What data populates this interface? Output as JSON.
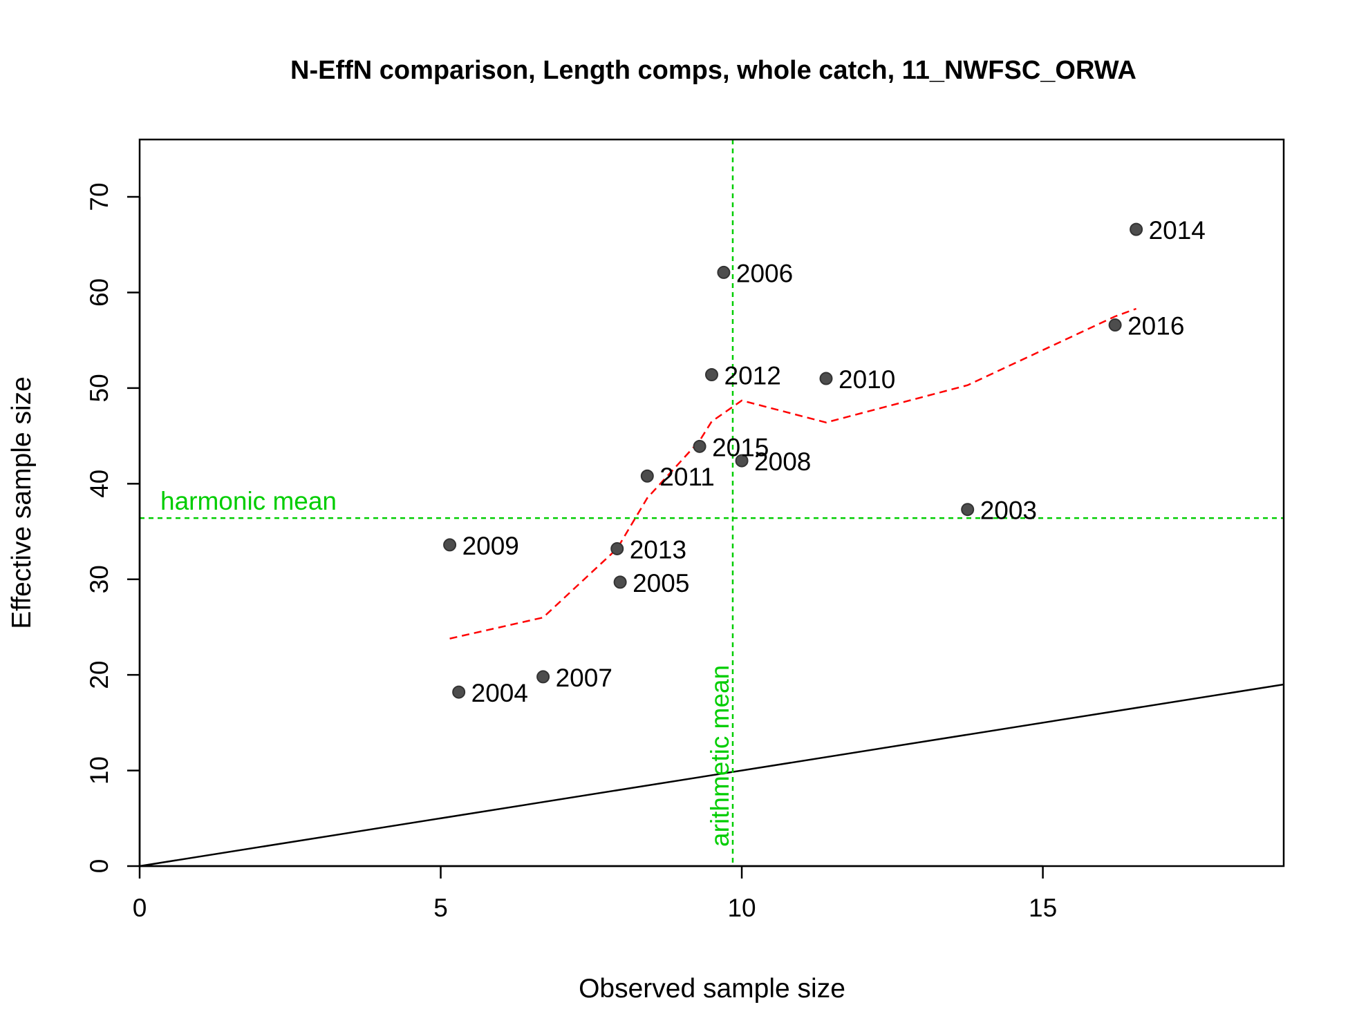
{
  "chart_data": {
    "type": "scatter",
    "title": "N-EffN comparison, Length comps, whole catch, 11_NWFSC_ORWA",
    "xlabel": "Observed sample size",
    "ylabel": "Effective sample size",
    "xlim": [
      0,
      19
    ],
    "ylim": [
      0,
      76
    ],
    "x_ticks": [
      "0",
      "5",
      "10",
      "15"
    ],
    "y_ticks": [
      "0",
      "10",
      "20",
      "30",
      "40",
      "50",
      "60",
      "70"
    ],
    "points": [
      {
        "label": "2003",
        "x": 13.75,
        "y": 37.3
      },
      {
        "label": "2004",
        "x": 5.3,
        "y": 18.2
      },
      {
        "label": "2005",
        "x": 7.98,
        "y": 29.7
      },
      {
        "label": "2006",
        "x": 9.7,
        "y": 62.1
      },
      {
        "label": "2007",
        "x": 6.7,
        "y": 19.8
      },
      {
        "label": "2008",
        "x": 10.0,
        "y": 42.4
      },
      {
        "label": "2009",
        "x": 5.15,
        "y": 33.6
      },
      {
        "label": "2010",
        "x": 11.4,
        "y": 51.0
      },
      {
        "label": "2011",
        "x": 8.43,
        "y": 40.8
      },
      {
        "label": "2012",
        "x": 9.5,
        "y": 51.4
      },
      {
        "label": "2013",
        "x": 7.93,
        "y": 33.2
      },
      {
        "label": "2014",
        "x": 16.55,
        "y": 66.6
      },
      {
        "label": "2015",
        "x": 9.3,
        "y": 43.9
      },
      {
        "label": "2016",
        "x": 16.2,
        "y": 56.6
      }
    ],
    "smoother": {
      "x": [
        5.15,
        6.7,
        7.93,
        8.43,
        9.3,
        9.5,
        10.0,
        11.4,
        13.75,
        16.2,
        16.55
      ],
      "y": [
        23.8,
        26.0,
        33.2,
        38.5,
        44.5,
        46.5,
        48.7,
        46.4,
        50.3,
        57.5,
        58.3
      ]
    },
    "harmonic_mean": {
      "label": "harmonic mean",
      "value": 36.4
    },
    "arithmetic_mean": {
      "label": "arithmetic mean",
      "value": 9.85
    },
    "one_to_one_line": true,
    "colors": {
      "points": "#4d4d4d",
      "smoother": "#ff0000",
      "mean_lines": "#00cd00",
      "one_to_one": "#000000"
    },
    "grid": false
  }
}
